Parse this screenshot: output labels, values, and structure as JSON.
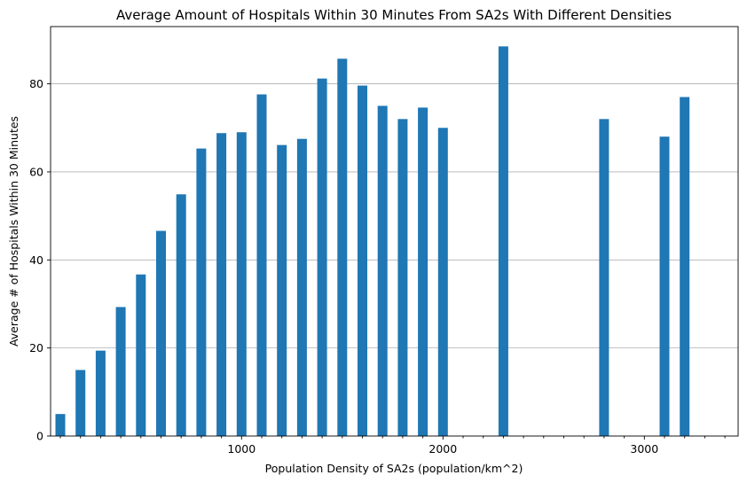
{
  "chart_data": {
    "type": "bar",
    "title": "Average Amount of Hospitals Within 30 Minutes From SA2s With Different Densities",
    "xlabel": "Population Density of SA2s (population/km^2)",
    "ylabel": "Average # of Hospitals Within 30 Minutes",
    "x_tick_labels": [
      "1000",
      "2000",
      "3000"
    ],
    "y_tick_labels": [
      "0",
      "20",
      "40",
      "60",
      "80"
    ],
    "ylim": [
      0,
      93
    ],
    "grid": "horizontal",
    "x": [
      100,
      200,
      300,
      400,
      500,
      600,
      700,
      800,
      900,
      1000,
      1100,
      1200,
      1300,
      1400,
      1500,
      1600,
      1700,
      1800,
      1900,
      2000,
      2300,
      2800,
      3100,
      3200
    ],
    "values": [
      5.0,
      15.0,
      19.4,
      29.3,
      36.7,
      46.6,
      54.9,
      65.3,
      68.8,
      69.0,
      77.6,
      66.1,
      67.5,
      81.2,
      85.7,
      79.6,
      75.0,
      72.0,
      74.6,
      70.0,
      88.5,
      72.0,
      68.0,
      77.0
    ],
    "color": "#1f77b4"
  }
}
